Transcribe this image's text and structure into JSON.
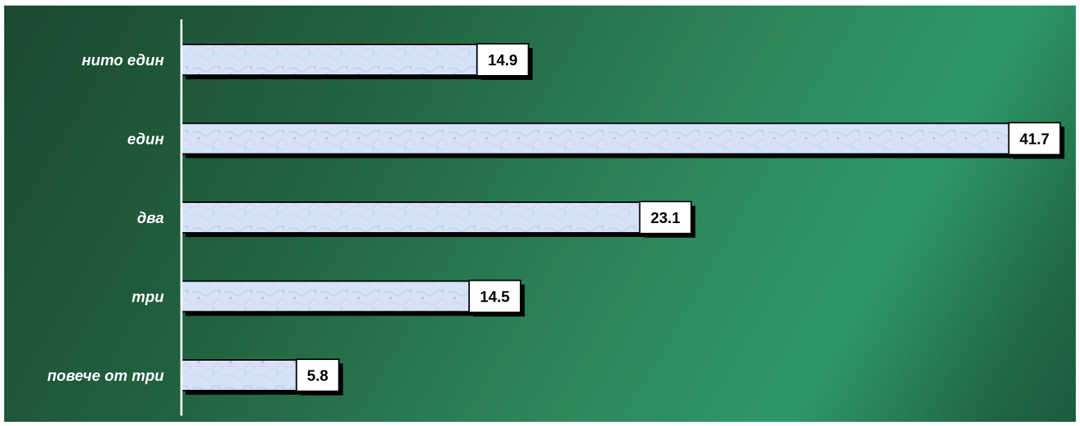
{
  "chart_data": {
    "type": "bar",
    "orientation": "horizontal",
    "categories": [
      "нито един",
      "един",
      "два",
      "три",
      "повече от три"
    ],
    "values": [
      14.9,
      41.7,
      23.1,
      14.5,
      5.8
    ],
    "data_labels": [
      "14.9",
      "41.7",
      "23.1",
      "14.5",
      "5.8"
    ],
    "title": "",
    "xlabel": "",
    "ylabel": "",
    "xlim": [
      0,
      41.7
    ],
    "grid": false,
    "legend": "none"
  },
  "colors": {
    "bar_fill": "#d6e2f7",
    "bar_stroke": "#000000",
    "label_box": "#ffffff",
    "axis_line": "#ffffff",
    "background_dark": "#1b4a30",
    "background_light": "#2f9868"
  }
}
